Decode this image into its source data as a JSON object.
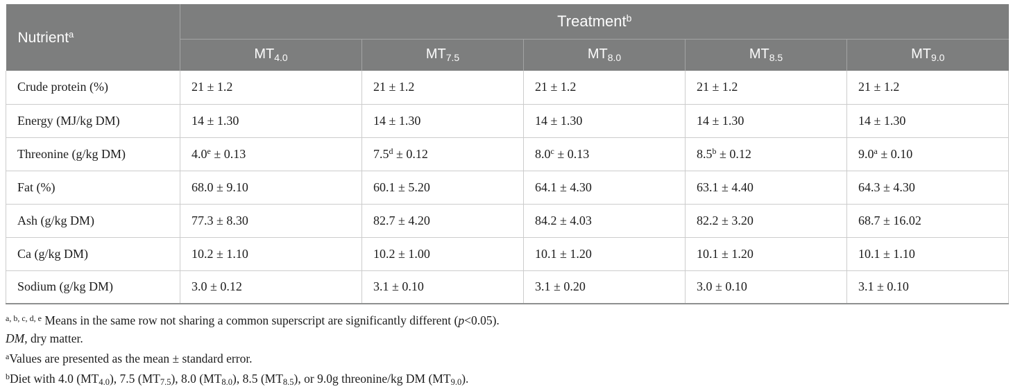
{
  "colors": {
    "header_bg": "#7d7e7e",
    "header_text": "#fcfcfc",
    "header_divider": "#a3a4a4",
    "grid_line": "#cccccc",
    "table_bottom_border": "#8e9090",
    "body_text": "#1c1c1c",
    "page_bg": "#ffffff"
  },
  "table": {
    "corner": {
      "label": "Nutrient",
      "sup": "a"
    },
    "group": {
      "label": "Treatment",
      "sup": "b"
    },
    "plus_minus": "±",
    "columns": [
      {
        "base": "MT",
        "sub": "4.0"
      },
      {
        "base": "MT",
        "sub": "7.5"
      },
      {
        "base": "MT",
        "sub": "8.0"
      },
      {
        "base": "MT",
        "sub": "8.5"
      },
      {
        "base": "MT",
        "sub": "9.0"
      }
    ],
    "rows": [
      {
        "nutrient": "Crude protein (%)",
        "cells": [
          {
            "mean": "21",
            "sup": "",
            "se": "1.2"
          },
          {
            "mean": "21",
            "sup": "",
            "se": "1.2"
          },
          {
            "mean": "21",
            "sup": "",
            "se": "1.2"
          },
          {
            "mean": "21",
            "sup": "",
            "se": "1.2"
          },
          {
            "mean": "21",
            "sup": "",
            "se": "1.2"
          }
        ]
      },
      {
        "nutrient": "Energy (MJ/kg DM)",
        "cells": [
          {
            "mean": "14",
            "sup": "",
            "se": "1.30"
          },
          {
            "mean": "14",
            "sup": "",
            "se": "1.30"
          },
          {
            "mean": "14",
            "sup": "",
            "se": "1.30"
          },
          {
            "mean": "14",
            "sup": "",
            "se": "1.30"
          },
          {
            "mean": "14",
            "sup": "",
            "se": "1.30"
          }
        ]
      },
      {
        "nutrient": "Threonine (g/kg DM)",
        "cells": [
          {
            "mean": "4.0",
            "sup": "e",
            "se": "0.13"
          },
          {
            "mean": "7.5",
            "sup": "d",
            "se": "0.12"
          },
          {
            "mean": "8.0",
            "sup": "c",
            "se": "0.13"
          },
          {
            "mean": "8.5",
            "sup": "b",
            "se": "0.12"
          },
          {
            "mean": "9.0",
            "sup": "a",
            "se": "0.10"
          }
        ]
      },
      {
        "nutrient": "Fat (%)",
        "cells": [
          {
            "mean": "68.0",
            "sup": "",
            "se": "9.10"
          },
          {
            "mean": "60.1",
            "sup": "",
            "se": "5.20"
          },
          {
            "mean": "64.1",
            "sup": "",
            "se": "4.30"
          },
          {
            "mean": "63.1",
            "sup": "",
            "se": "4.40"
          },
          {
            "mean": "64.3",
            "sup": "",
            "se": "4.30"
          }
        ]
      },
      {
        "nutrient": "Ash (g/kg DM)",
        "cells": [
          {
            "mean": "77.3",
            "sup": "",
            "se": "8.30"
          },
          {
            "mean": "82.7",
            "sup": "",
            "se": "4.20"
          },
          {
            "mean": "84.2",
            "sup": "",
            "se": "4.03"
          },
          {
            "mean": "82.2",
            "sup": "",
            "se": "3.20"
          },
          {
            "mean": "68.7",
            "sup": "",
            "se": "16.02"
          }
        ]
      },
      {
        "nutrient": "Ca (g/kg DM)",
        "cells": [
          {
            "mean": "10.2",
            "sup": "",
            "se": "1.10"
          },
          {
            "mean": "10.2",
            "sup": "",
            "se": "1.00"
          },
          {
            "mean": "10.1",
            "sup": "",
            "se": "1.20"
          },
          {
            "mean": "10.1",
            "sup": "",
            "se": "1.20"
          },
          {
            "mean": "10.1",
            "sup": "",
            "se": "1.10"
          }
        ]
      },
      {
        "nutrient": "Sodium (g/kg DM)",
        "cells": [
          {
            "mean": "3.0",
            "sup": "",
            "se": "0.12"
          },
          {
            "mean": "3.1",
            "sup": "",
            "se": "0.10"
          },
          {
            "mean": "3.1",
            "sup": "",
            "se": "0.20"
          },
          {
            "mean": "3.0",
            "sup": "",
            "se": "0.10"
          },
          {
            "mean": "3.1",
            "sup": "",
            "se": "0.10"
          }
        ]
      }
    ]
  },
  "footnotes": [
    {
      "segments": [
        {
          "s": "sup",
          "t": "a, b, c, d, e"
        },
        {
          "s": "",
          "t": " Means in the same row not sharing a common superscript are significantly different ("
        },
        {
          "s": "i",
          "t": "p"
        },
        {
          "s": "",
          "t": "<0.05)."
        }
      ]
    },
    {
      "segments": [
        {
          "s": "i",
          "t": "DM"
        },
        {
          "s": "",
          "t": ", dry matter."
        }
      ]
    },
    {
      "segments": [
        {
          "s": "sup",
          "t": "a"
        },
        {
          "s": "",
          "t": "Values are presented as the mean ± standard error."
        }
      ]
    },
    {
      "segments": [
        {
          "s": "sup",
          "t": "b"
        },
        {
          "s": "",
          "t": "Diet with 4.0 (MT"
        },
        {
          "s": "sub",
          "t": "4.0"
        },
        {
          "s": "",
          "t": "), 7.5 (MT"
        },
        {
          "s": "sub",
          "t": "7.5"
        },
        {
          "s": "",
          "t": "), 8.0 (MT"
        },
        {
          "s": "sub",
          "t": "8.0"
        },
        {
          "s": "",
          "t": "), 8.5 (MT"
        },
        {
          "s": "sub",
          "t": "8.5"
        },
        {
          "s": "",
          "t": "), or 9.0g threonine/kg DM (MT"
        },
        {
          "s": "sub",
          "t": "9.0"
        },
        {
          "s": "",
          "t": ")."
        }
      ]
    }
  ]
}
